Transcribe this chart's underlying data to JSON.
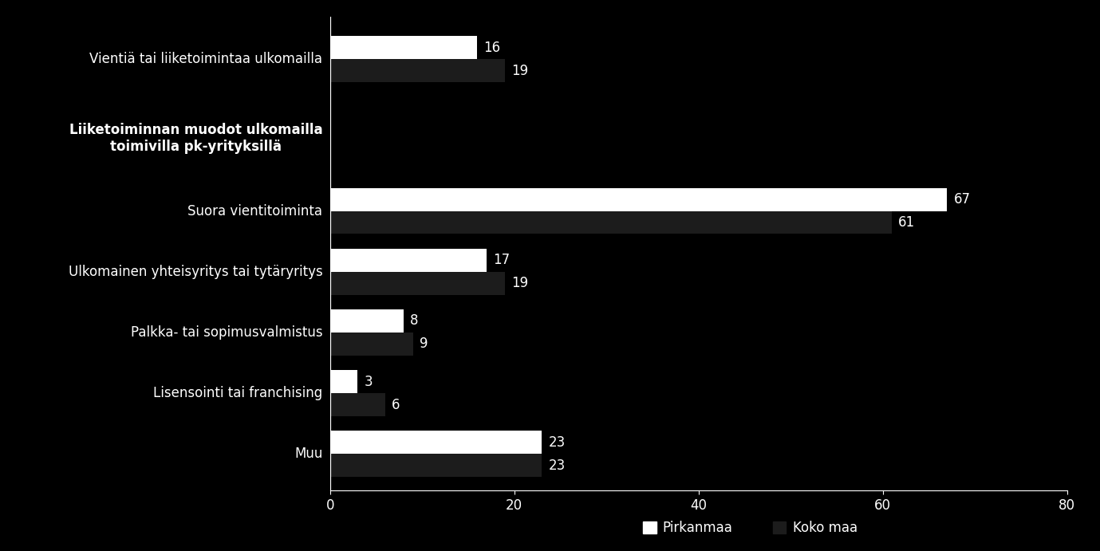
{
  "categories": [
    "Vientiä tai liiketoimintaa ulkomailla",
    "Liiketoiminnan muodot ulkomailla\ntoimivilla pk-yrityksillä",
    "Suora vientitoiminta",
    "Ulkomainen yhteisyritys tai tytäryritys",
    "Palkka- tai sopimusvalmistus",
    "Lisensointi tai franchising",
    "Muu"
  ],
  "pirkanmaa": [
    16,
    null,
    67,
    17,
    8,
    3,
    23
  ],
  "koko_maa": [
    19,
    null,
    61,
    19,
    9,
    6,
    23
  ],
  "bar_color_pirkanmaa": "#ffffff",
  "bar_color_koko_maa": "#1c1c1c",
  "background_color": "#000000",
  "text_color": "#ffffff",
  "xlim": [
    0,
    80
  ],
  "xticks": [
    0,
    20,
    40,
    60,
    80
  ],
  "legend_pirkanmaa": "Pirkanmaa",
  "legend_koko_maa": "Koko maa",
  "label_fontsize": 12,
  "tick_fontsize": 12,
  "value_fontsize": 12,
  "bold_category_index": 1,
  "bar_height": 0.38,
  "y_positions": [
    6.5,
    5.2,
    4.0,
    3.0,
    2.0,
    1.0,
    0.0
  ],
  "label_only_index": 1
}
